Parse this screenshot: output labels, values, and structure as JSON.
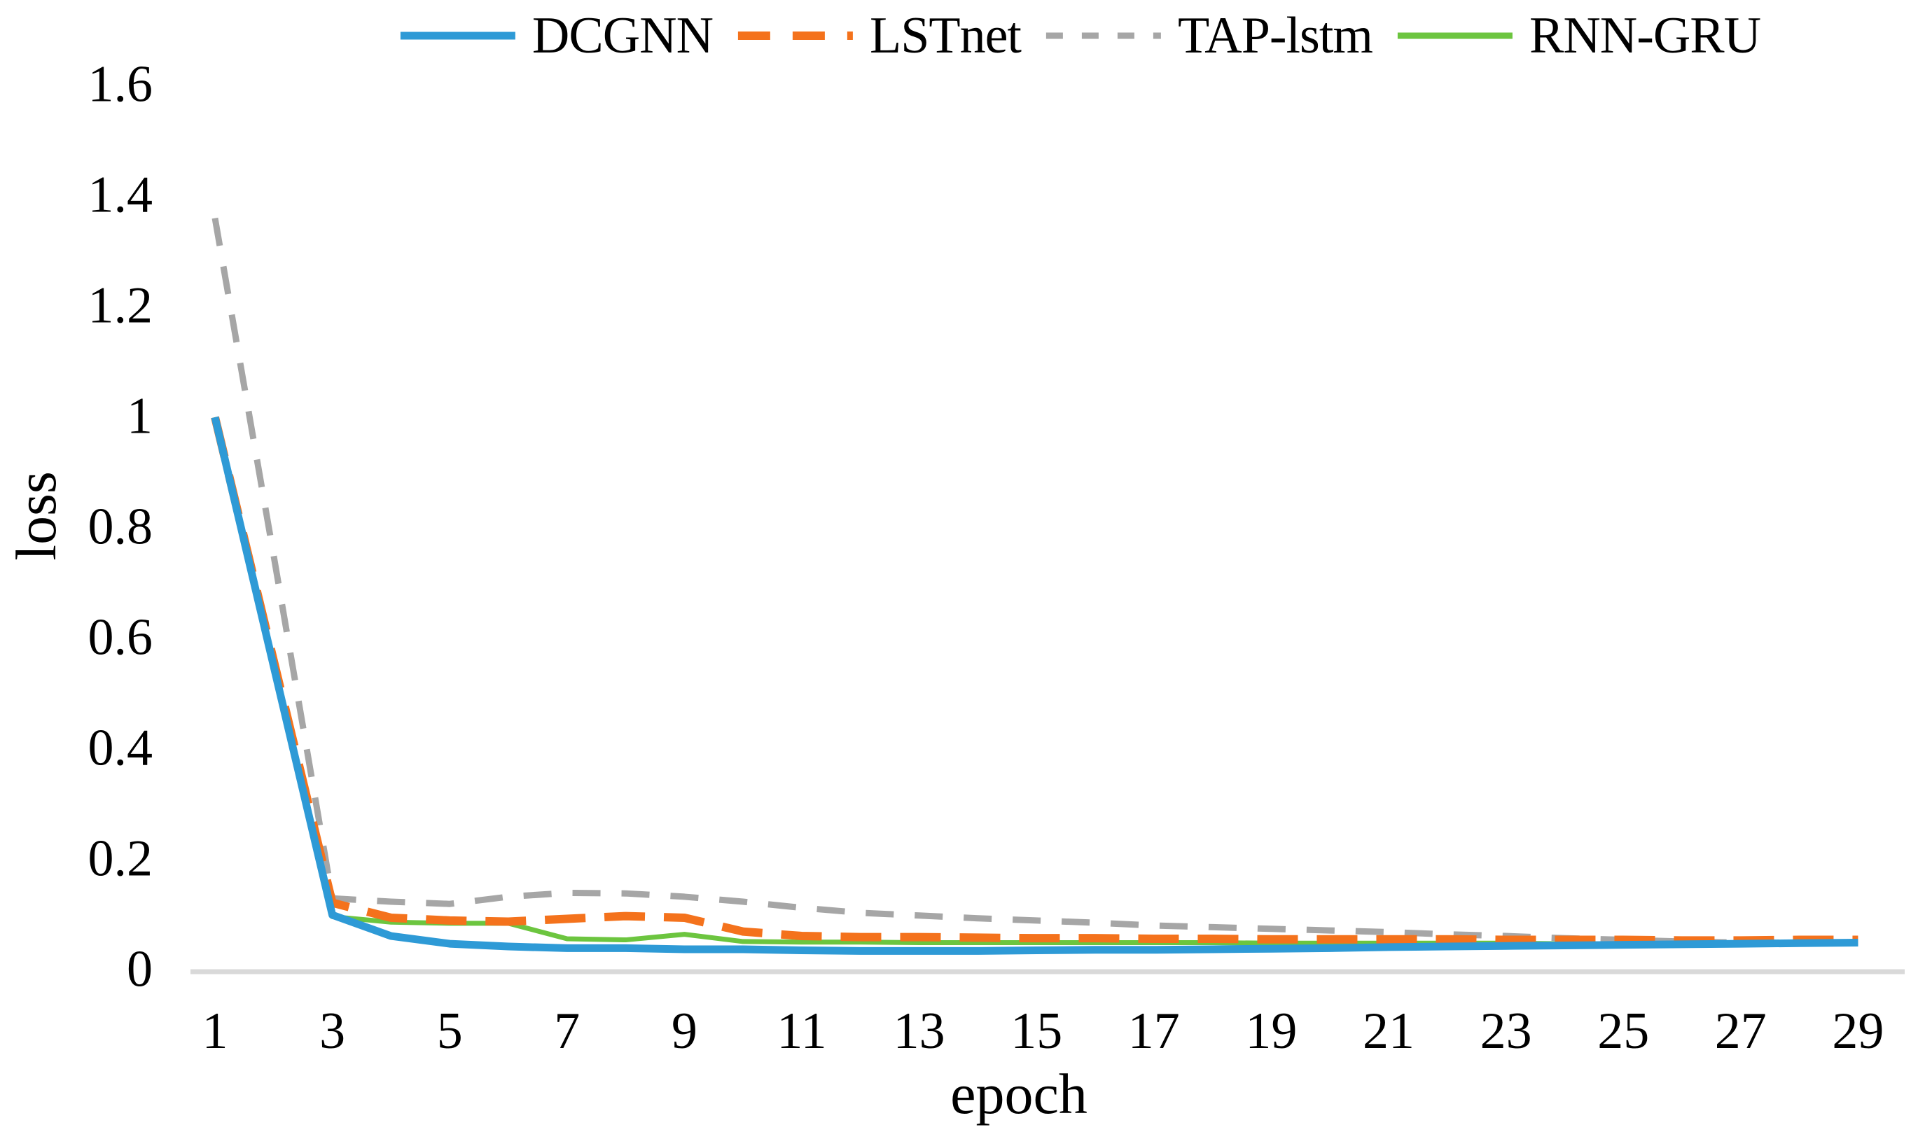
{
  "figure": {
    "background": "#ffffff",
    "axis_line_color": "#d9d9d9",
    "text_color": "#000000"
  },
  "chart_data": {
    "type": "line",
    "title": "",
    "xlabel": "epoch",
    "ylabel": "loss",
    "xlim": [
      1,
      29
    ],
    "ylim": [
      0,
      1.6
    ],
    "grid": "off",
    "legend_position": "top-center",
    "x": [
      1,
      2,
      3,
      4,
      5,
      6,
      7,
      8,
      9,
      10,
      11,
      12,
      13,
      14,
      15,
      16,
      17,
      18,
      19,
      20,
      21,
      22,
      23,
      24,
      25,
      26,
      27,
      28,
      29
    ],
    "x_tick_labels": [
      "1",
      "3",
      "5",
      "7",
      "9",
      "11",
      "13",
      "15",
      "17",
      "19",
      "21",
      "23",
      "25",
      "27",
      "29"
    ],
    "y_ticks": [
      0,
      0.2,
      0.4,
      0.6,
      0.8,
      1.0,
      1.2,
      1.4,
      1.6
    ],
    "y_tick_labels": [
      "0",
      "0.2",
      "0.4",
      "0.6",
      "0.8",
      "1",
      "1.2",
      "1.4",
      "1.6"
    ],
    "series": [
      {
        "name": "DCGNN",
        "color": "#2e9ad6",
        "dash": "solid",
        "width": 11,
        "values": [
          1.0,
          0.55,
          0.1,
          0.062,
          0.048,
          0.043,
          0.04,
          0.04,
          0.038,
          0.038,
          0.036,
          0.035,
          0.035,
          0.035,
          0.036,
          0.037,
          0.037,
          0.038,
          0.039,
          0.04,
          0.042,
          0.043,
          0.044,
          0.045,
          0.046,
          0.047,
          0.048,
          0.049,
          0.05
        ]
      },
      {
        "name": "LSTnet",
        "color": "#f4721c",
        "dash": "long-dash",
        "width": 12,
        "values": [
          1.0,
          0.56,
          0.122,
          0.095,
          0.09,
          0.088,
          0.093,
          0.098,
          0.095,
          0.07,
          0.062,
          0.06,
          0.06,
          0.059,
          0.058,
          0.058,
          0.057,
          0.057,
          0.056,
          0.056,
          0.056,
          0.056,
          0.055,
          0.055,
          0.055,
          0.054,
          0.054,
          0.055,
          0.055
        ]
      },
      {
        "name": "TAP-lstm",
        "color": "#a6a6a6",
        "dash": "short-dash",
        "width": 9,
        "values": [
          1.36,
          0.75,
          0.13,
          0.124,
          0.12,
          0.133,
          0.14,
          0.139,
          0.133,
          0.124,
          0.113,
          0.104,
          0.099,
          0.094,
          0.09,
          0.086,
          0.081,
          0.078,
          0.075,
          0.072,
          0.069,
          0.065,
          0.062,
          0.058,
          0.055,
          0.052,
          0.05,
          0.05,
          0.049
        ]
      },
      {
        "name": "RNN-GRU",
        "color": "#6cc53f",
        "dash": "solid",
        "width": 7,
        "values": [
          1.0,
          0.55,
          0.097,
          0.087,
          0.085,
          0.085,
          0.057,
          0.055,
          0.065,
          0.052,
          0.051,
          0.051,
          0.05,
          0.05,
          0.05,
          0.05,
          0.05,
          0.05,
          0.049,
          0.049,
          0.049,
          0.049,
          0.049,
          0.048,
          0.048,
          0.048,
          0.048,
          0.049,
          0.05
        ]
      }
    ]
  }
}
